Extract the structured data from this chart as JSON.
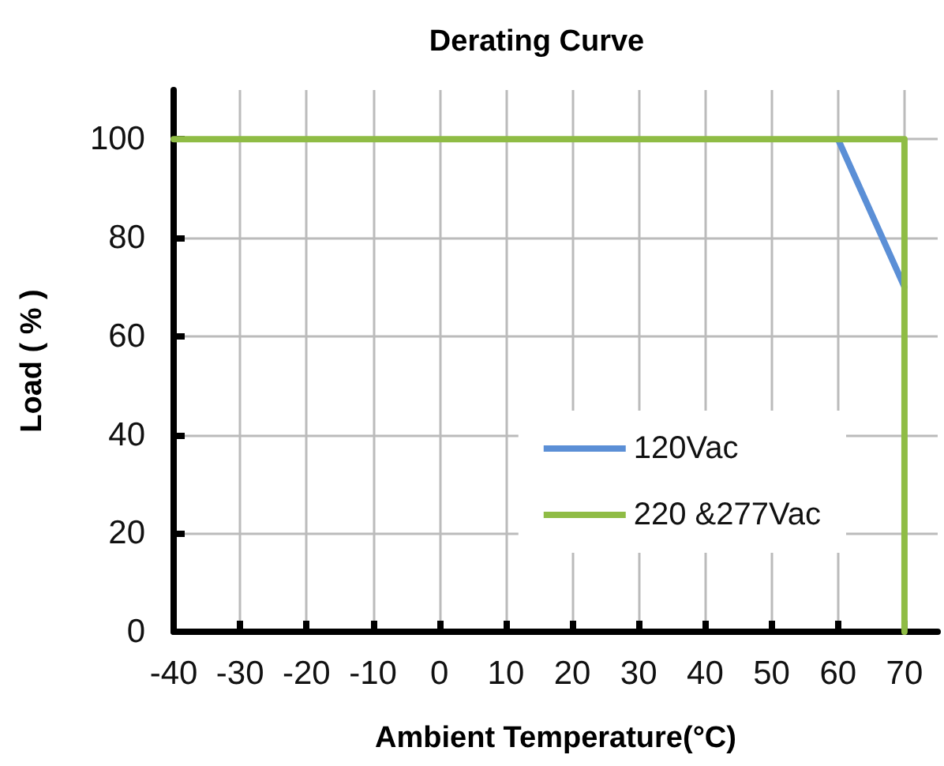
{
  "chart_data": {
    "type": "line",
    "title": "Derating Curve",
    "xlabel": "Ambient Temperature(°C)",
    "ylabel": "Load ( % )",
    "xlim": [
      -40,
      75
    ],
    "xticks": [
      -40,
      -30,
      -20,
      -10,
      0,
      10,
      20,
      30,
      40,
      50,
      60,
      70
    ],
    "ylim": [
      0,
      110
    ],
    "yticks": [
      0,
      20,
      40,
      60,
      80,
      100
    ],
    "grid": true,
    "legend": "bottom right",
    "marker": "none",
    "line_style": "solid",
    "series": [
      {
        "name": "120Vac",
        "color": "#5b8fd6",
        "x": [
          60,
          70
        ],
        "values": [
          100,
          70
        ]
      },
      {
        "name": "220 &277Vac",
        "color": "#8fbc45",
        "x": [
          -40,
          70,
          70
        ],
        "values": [
          100,
          100,
          0
        ]
      }
    ]
  }
}
